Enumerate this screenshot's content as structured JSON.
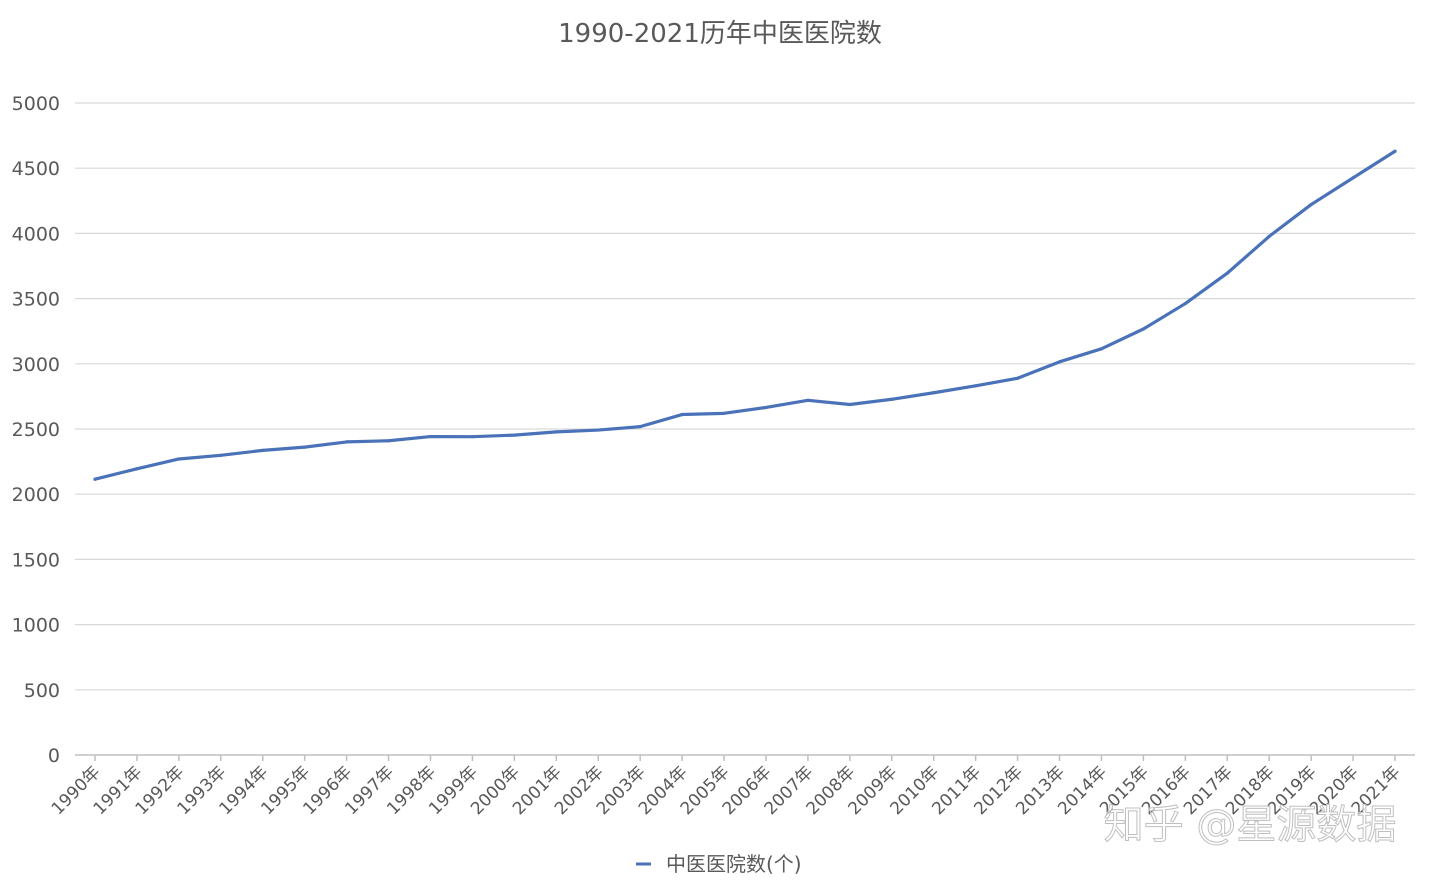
{
  "chart_data": {
    "type": "line",
    "title": "1990-2021历年中医医院数",
    "xlabel": "",
    "ylabel": "",
    "ylim": [
      0,
      5000
    ],
    "yticks": [
      0,
      500,
      1000,
      1500,
      2000,
      2500,
      3000,
      3500,
      4000,
      4500,
      5000
    ],
    "grid": true,
    "legend_position": "bottom",
    "categories": [
      "1990年",
      "1991年",
      "1992年",
      "1993年",
      "1994年",
      "1995年",
      "1996年",
      "1997年",
      "1998年",
      "1999年",
      "2000年",
      "2001年",
      "2002年",
      "2003年",
      "2004年",
      "2005年",
      "2006年",
      "2007年",
      "2008年",
      "2009年",
      "2010年",
      "2011年",
      "2012年",
      "2013年",
      "2014年",
      "2015年",
      "2016年",
      "2017年",
      "2018年",
      "2019年",
      "2020年",
      "2021年"
    ],
    "series": [
      {
        "name": "中医医院数(个)",
        "color": "#4a72b8",
        "values": [
          2115,
          2195,
          2270,
          2298,
          2336,
          2361,
          2401,
          2410,
          2442,
          2441,
          2453,
          2478,
          2492,
          2518,
          2611,
          2620,
          2665,
          2720,
          2688,
          2728,
          2778,
          2831,
          2889,
          3015,
          3115,
          3267,
          3462,
          3695,
          3977,
          4221,
          4426,
          4630
        ]
      }
    ]
  },
  "watermark": "知乎 @星源数据"
}
